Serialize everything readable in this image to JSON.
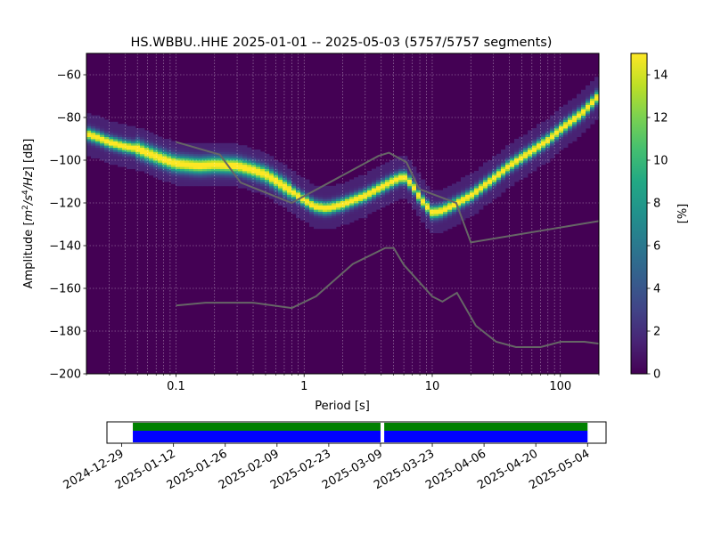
{
  "title": "HS.WBBU..HHE   2025-01-01 -- 2025-05-03  (5757/5757 segments)",
  "colors": {
    "background": "#440154",
    "noise_model": "#666666",
    "data_available": "#008000",
    "data_used": "#0000ff",
    "grid": "#ffffff"
  },
  "chart_data": [
    {
      "type": "heatmap",
      "xlabel": "Period [s]",
      "ylabel": "Amplitude [m²/s⁴/Hz] [dB]",
      "xscale": "log",
      "xlim": [
        0.02,
        200
      ],
      "ylim": [
        -200,
        -50
      ],
      "x_ticks": [
        {
          "value": 0.1,
          "label": "0.1"
        },
        {
          "value": 1,
          "label": "1"
        },
        {
          "value": 10,
          "label": "10"
        },
        {
          "value": 100,
          "label": "100"
        }
      ],
      "y_ticks": [
        -200,
        -180,
        -160,
        -140,
        -120,
        -100,
        -80,
        -60
      ],
      "colorbar": {
        "label": "[%]",
        "range": [
          0,
          15
        ],
        "ticks": [
          0,
          2,
          4,
          6,
          8,
          10,
          12,
          14
        ],
        "colormap": "viridis"
      },
      "mode_curve": [
        {
          "period": 0.02,
          "db": -88
        },
        {
          "period": 0.025,
          "db": -90
        },
        {
          "period": 0.03,
          "db": -92
        },
        {
          "period": 0.04,
          "db": -94
        },
        {
          "period": 0.05,
          "db": -95
        },
        {
          "period": 0.06,
          "db": -97
        },
        {
          "period": 0.08,
          "db": -100
        },
        {
          "period": 0.1,
          "db": -102
        },
        {
          "period": 0.15,
          "db": -103
        },
        {
          "period": 0.2,
          "db": -102.5
        },
        {
          "period": 0.3,
          "db": -103
        },
        {
          "period": 0.4,
          "db": -105
        },
        {
          "period": 0.5,
          "db": -107
        },
        {
          "period": 0.6,
          "db": -110
        },
        {
          "period": 0.8,
          "db": -115
        },
        {
          "period": 1.0,
          "db": -119
        },
        {
          "period": 1.2,
          "db": -122
        },
        {
          "period": 1.5,
          "db": -123
        },
        {
          "period": 2,
          "db": -121
        },
        {
          "period": 3,
          "db": -117
        },
        {
          "period": 4,
          "db": -113
        },
        {
          "period": 5,
          "db": -110
        },
        {
          "period": 6,
          "db": -108
        },
        {
          "period": 7,
          "db": -112
        },
        {
          "period": 8,
          "db": -118
        },
        {
          "period": 10,
          "db": -125
        },
        {
          "period": 12,
          "db": -124
        },
        {
          "period": 15,
          "db": -121
        },
        {
          "period": 20,
          "db": -117
        },
        {
          "period": 30,
          "db": -109
        },
        {
          "period": 40,
          "db": -103
        },
        {
          "period": 60,
          "db": -96
        },
        {
          "period": 80,
          "db": -91
        },
        {
          "period": 100,
          "db": -86
        },
        {
          "period": 150,
          "db": -78
        },
        {
          "period": 200,
          "db": -70
        }
      ],
      "nhnm": [
        {
          "period": 0.1,
          "db": -91.5
        },
        {
          "period": 0.22,
          "db": -97.4
        },
        {
          "period": 0.32,
          "db": -110.5
        },
        {
          "period": 0.8,
          "db": -120
        },
        {
          "period": 3.8,
          "db": -98
        },
        {
          "period": 4.6,
          "db": -96.5
        },
        {
          "period": 6.3,
          "db": -101
        },
        {
          "period": 7.9,
          "db": -113.5
        },
        {
          "period": 15.4,
          "db": -120
        },
        {
          "period": 20,
          "db": -138.5
        },
        {
          "period": 354.8,
          "db": -126
        }
      ],
      "nlnm": [
        {
          "period": 0.1,
          "db": -168
        },
        {
          "period": 0.17,
          "db": -166.7
        },
        {
          "period": 0.4,
          "db": -166.7
        },
        {
          "period": 0.8,
          "db": -169.2
        },
        {
          "period": 1.24,
          "db": -163.7
        },
        {
          "period": 2.4,
          "db": -148.6
        },
        {
          "period": 4.3,
          "db": -141.1
        },
        {
          "period": 5,
          "db": -141.1
        },
        {
          "period": 6,
          "db": -149
        },
        {
          "period": 10,
          "db": -163.8
        },
        {
          "period": 12,
          "db": -166.2
        },
        {
          "period": 15.6,
          "db": -162.1
        },
        {
          "period": 21.9,
          "db": -177.5
        },
        {
          "period": 31.6,
          "db": -185
        },
        {
          "period": 45,
          "db": -187.5
        },
        {
          "period": 70,
          "db": -187.5
        },
        {
          "period": 101,
          "db": -185
        },
        {
          "period": 154,
          "db": -185
        },
        {
          "period": 328,
          "db": -187.5
        }
      ]
    },
    {
      "type": "bar",
      "description_role": "data availability timeline",
      "x_tick_labels": [
        "2024-12-29",
        "2025-01-12",
        "2025-01-26",
        "2025-02-09",
        "2025-02-23",
        "2025-03-09",
        "2025-03-23",
        "2025-04-06",
        "2025-04-20",
        "2025-05-04"
      ],
      "x_tick_dates": [
        "2024-12-29",
        "2025-01-12",
        "2025-01-26",
        "2025-02-09",
        "2025-02-23",
        "2025-03-09",
        "2025-03-23",
        "2025-04-06",
        "2025-04-20",
        "2025-05-04"
      ],
      "xlim": [
        "2024-12-25",
        "2025-05-09"
      ],
      "segments": [
        {
          "start": "2025-01-01",
          "end": "2025-03-08"
        },
        {
          "start": "2025-03-10",
          "end": "2025-05-03"
        }
      ]
    }
  ]
}
